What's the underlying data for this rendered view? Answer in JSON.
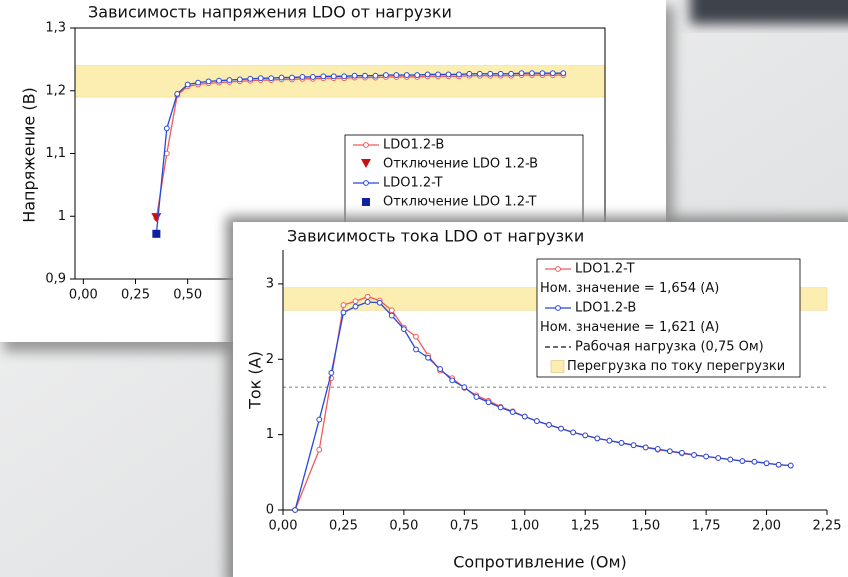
{
  "chart_data": [
    {
      "type": "line",
      "title": "Зависимость напряжения LDO от нагрузки",
      "y_label": "Напряжение (В)",
      "xlim": [
        -0.04,
        2.5
      ],
      "ylim": [
        0.9,
        1.3
      ],
      "xticks": [
        {
          "value": 0,
          "label": "0,00"
        },
        {
          "value": 0.25,
          "label": "0,25"
        },
        {
          "value": 0.5,
          "label": "0,50"
        }
      ],
      "yticks": [
        {
          "value": 0.9,
          "label": "0,9"
        },
        1,
        {
          "value": 1.1,
          "label": "1,1"
        },
        {
          "value": 1.2,
          "label": "1,2"
        },
        {
          "value": 1.3,
          "label": "1,3"
        }
      ],
      "band": [
        1.19,
        1.24
      ],
      "band_color": "#fbeeb0",
      "series": [
        {
          "name": "LDO1.2-B",
          "color": "#f05a5a",
          "marker": "circle",
          "x": [
            0.35,
            0.4,
            0.45,
            0.5,
            0.55,
            0.6,
            0.65,
            0.7,
            0.75,
            0.8,
            0.85,
            0.9,
            0.95,
            1.0,
            1.05,
            1.1,
            1.15,
            1.2,
            1.25,
            1.3,
            1.35,
            1.4,
            1.45,
            1.5,
            1.55,
            1.6,
            1.65,
            1.7,
            1.75,
            1.8,
            1.85,
            1.9,
            1.95,
            2.0,
            2.05,
            2.1,
            2.15,
            2.2,
            2.25,
            2.3
          ],
          "values": [
            0.997,
            1.1,
            1.193,
            1.207,
            1.21,
            1.212,
            1.213,
            1.214,
            1.215,
            1.216,
            1.217,
            1.217,
            1.218,
            1.218,
            1.219,
            1.219,
            1.22,
            1.22,
            1.22,
            1.221,
            1.221,
            1.221,
            1.222,
            1.222,
            1.222,
            1.222,
            1.223,
            1.223,
            1.223,
            1.223,
            1.224,
            1.224,
            1.224,
            1.224,
            1.224,
            1.225,
            1.225,
            1.225,
            1.225,
            1.225
          ]
        },
        {
          "name": "Отключение LDO 1.2-B",
          "color": "#c81010",
          "marker": "triangle",
          "x": [
            0.35
          ],
          "values": [
            0.997
          ]
        },
        {
          "name": "LDO1.2-T",
          "color": "#2848d8",
          "marker": "circle",
          "x": [
            0.35,
            0.4,
            0.45,
            0.5,
            0.55,
            0.6,
            0.65,
            0.7,
            0.75,
            0.8,
            0.85,
            0.9,
            0.95,
            1.0,
            1.05,
            1.1,
            1.15,
            1.2,
            1.25,
            1.3,
            1.35,
            1.4,
            1.45,
            1.5,
            1.55,
            1.6,
            1.65,
            1.7,
            1.75,
            1.8,
            1.85,
            1.9,
            1.95,
            2.0,
            2.05,
            2.1,
            2.15,
            2.2,
            2.25,
            2.3
          ],
          "values": [
            0.972,
            1.14,
            1.195,
            1.21,
            1.213,
            1.215,
            1.216,
            1.217,
            1.218,
            1.219,
            1.22,
            1.22,
            1.221,
            1.221,
            1.222,
            1.222,
            1.223,
            1.223,
            1.223,
            1.224,
            1.224,
            1.224,
            1.225,
            1.225,
            1.225,
            1.225,
            1.226,
            1.226,
            1.226,
            1.226,
            1.227,
            1.227,
            1.227,
            1.227,
            1.227,
            1.228,
            1.228,
            1.228,
            1.228,
            1.228
          ]
        },
        {
          "name": "Отключение LDO 1.2-T",
          "color": "#1020a0",
          "marker": "square",
          "x": [
            0.35
          ],
          "values": [
            0.972
          ]
        }
      ]
    },
    {
      "type": "line",
      "title": "Зависимость тока LDO от нагрузки",
      "x_label": "Сопротивление (Ом)",
      "y_label": "Ток (А)",
      "xlim": [
        0,
        2.25
      ],
      "ylim": [
        0,
        3.45
      ],
      "xticks": [
        {
          "value": 0,
          "label": "0,00"
        },
        {
          "value": 0.25,
          "label": "0,25"
        },
        {
          "value": 0.5,
          "label": "0,50"
        },
        {
          "value": 0.75,
          "label": "0,75"
        },
        {
          "value": 1,
          "label": "1,00"
        },
        {
          "value": 1.25,
          "label": "1,25"
        },
        {
          "value": 1.5,
          "label": "1,50"
        },
        {
          "value": 1.75,
          "label": "1,75"
        },
        {
          "value": 2,
          "label": "2,00"
        },
        {
          "value": 2.25,
          "label": "2,25"
        }
      ],
      "yticks": [
        0,
        1,
        2,
        3
      ],
      "band": [
        2.65,
        2.95
      ],
      "band_color": "#fbeeb0",
      "band_name": "Перегрузка по току перегрузки",
      "hline": {
        "name": "Рабочая нагрузка (0,75 Ом)",
        "value": 1.63,
        "color": "#555555"
      },
      "x": [
        0.05,
        0.15,
        0.2,
        0.25,
        0.3,
        0.35,
        0.4,
        0.45,
        0.5,
        0.55,
        0.6,
        0.65,
        0.7,
        0.75,
        0.8,
        0.85,
        0.9,
        0.95,
        1.0,
        1.05,
        1.1,
        1.15,
        1.2,
        1.25,
        1.3,
        1.35,
        1.4,
        1.45,
        1.5,
        1.55,
        1.6,
        1.65,
        1.7,
        1.75,
        1.8,
        1.85,
        1.9,
        1.95,
        2.0,
        2.05,
        2.1
      ],
      "series": [
        {
          "name": "LDO1.2-T",
          "note": "Ном. значение = 1,654 (А)",
          "color": "#f05a5a",
          "marker": "circle",
          "values": [
            0,
            0.8,
            1.75,
            2.72,
            2.77,
            2.83,
            2.78,
            2.65,
            2.42,
            2.3,
            2.05,
            1.85,
            1.75,
            1.62,
            1.52,
            1.45,
            1.37,
            1.31,
            1.24,
            1.18,
            1.13,
            1.08,
            1.03,
            0.99,
            0.95,
            0.92,
            0.89,
            0.86,
            0.83,
            0.8,
            0.78,
            0.75,
            0.73,
            0.71,
            0.69,
            0.67,
            0.65,
            0.64,
            0.62,
            0.6,
            0.59
          ]
        },
        {
          "name": "LDO1.2-B",
          "note": "Ном. значение = 1,621 (А)",
          "color": "#2848d8",
          "marker": "circle",
          "values": [
            0,
            1.2,
            1.82,
            2.62,
            2.7,
            2.76,
            2.75,
            2.58,
            2.4,
            2.13,
            2.02,
            1.87,
            1.72,
            1.63,
            1.5,
            1.43,
            1.36,
            1.3,
            1.24,
            1.18,
            1.13,
            1.08,
            1.03,
            0.99,
            0.95,
            0.92,
            0.89,
            0.86,
            0.83,
            0.81,
            0.78,
            0.76,
            0.73,
            0.71,
            0.69,
            0.67,
            0.65,
            0.64,
            0.62,
            0.6,
            0.59
          ]
        }
      ]
    }
  ]
}
